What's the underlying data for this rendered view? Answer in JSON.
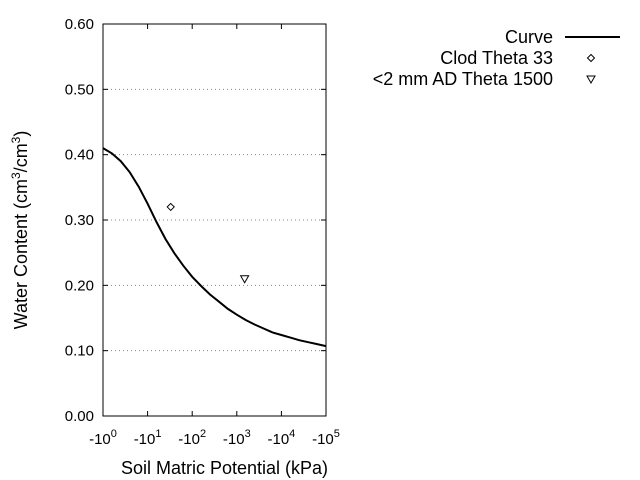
{
  "chart_data": {
    "type": "scatter",
    "title": "",
    "xlabel": "Soil Matric Potential (kPa)",
    "ylabel": {
      "parts": [
        "Water Content (cm",
        "3",
        "/cm",
        "3",
        ")"
      ]
    },
    "x_scale": "log",
    "x_ticks": [
      {
        "base": "-10",
        "exp": "0",
        "value": -1
      },
      {
        "base": "-10",
        "exp": "1",
        "value": -10
      },
      {
        "base": "-10",
        "exp": "2",
        "value": -100
      },
      {
        "base": "-10",
        "exp": "3",
        "value": -1000
      },
      {
        "base": "-10",
        "exp": "4",
        "value": -10000
      },
      {
        "base": "-10",
        "exp": "5",
        "value": -100000
      }
    ],
    "xlim": [
      -1,
      -100000
    ],
    "y_ticks": [
      "0.00",
      "0.10",
      "0.20",
      "0.30",
      "0.40",
      "0.50",
      "0.60"
    ],
    "ylim": [
      0,
      0.6
    ],
    "grid": "horizontal dotted",
    "legend_position": "top-right",
    "series": [
      {
        "name": "Curve",
        "kind": "line",
        "x": [
          -1,
          -1.58,
          -2.51,
          -3.98,
          -6.31,
          -10,
          -15.8,
          -25.1,
          -39.8,
          -63.1,
          -100,
          -158,
          -251,
          -398,
          -631,
          -1000,
          -1585,
          -2512,
          -3981,
          -6310,
          -10000,
          -15849,
          -25119,
          -39811,
          -63096,
          -100000
        ],
        "y": [
          0.41,
          0.402,
          0.39,
          0.373,
          0.351,
          0.325,
          0.297,
          0.271,
          0.249,
          0.23,
          0.213,
          0.199,
          0.186,
          0.175,
          0.164,
          0.155,
          0.147,
          0.14,
          0.134,
          0.128,
          0.124,
          0.12,
          0.116,
          0.113,
          0.11,
          0.107
        ]
      },
      {
        "name": "Clod Theta 33",
        "kind": "points",
        "marker": "diamond",
        "points": [
          {
            "x": -33,
            "y": 0.32
          }
        ]
      },
      {
        "name": "<2 mm AD Theta 1500",
        "kind": "points",
        "marker": "triangle-down",
        "points": [
          {
            "x": -1500,
            "y": 0.21
          }
        ]
      }
    ]
  }
}
